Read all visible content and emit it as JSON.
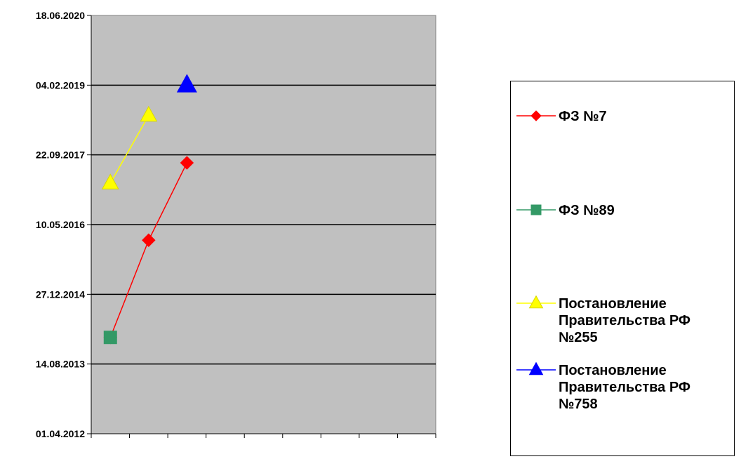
{
  "chart_data": {
    "type": "line",
    "title": "",
    "xlabel": "",
    "ylabel": "",
    "y_axis": {
      "type": "date",
      "tick_labels": [
        "01.04.2012",
        "14.08.2013",
        "27.12.2014",
        "10.05.2016",
        "22.09.2017",
        "04.02.2019",
        "18.06.2020"
      ],
      "ylim": [
        "01.04.2012",
        "18.06.2020"
      ]
    },
    "x_axis": {
      "categories": [
        "",
        "",
        "",
        "",
        "",
        "",
        "",
        "",
        ""
      ],
      "tick_labels_shown": false
    },
    "grid": {
      "horizontal": true,
      "vertical": false
    },
    "plot_background": "#c0c0c0",
    "legend_position": "right",
    "series": [
      {
        "name": "ФЗ №7",
        "color": "#ff0000",
        "marker": "diamond",
        "points": [
          {
            "x": 1,
            "y": "21.02.2014"
          },
          {
            "x": 2,
            "y": "19.01.2016"
          },
          {
            "x": 3,
            "y": "27.07.2017"
          }
        ]
      },
      {
        "name": "ФЗ №89",
        "color": "#339966",
        "marker": "square",
        "points": [
          {
            "x": 1,
            "y": "21.02.2014"
          }
        ]
      },
      {
        "name": "Постановление\nПравительства РФ\n№255",
        "color": "#ffff00",
        "marker": "triangle",
        "points": [
          {
            "x": 1,
            "y": "03.03.2017"
          },
          {
            "x": 2,
            "y": "02.07.2018"
          }
        ]
      },
      {
        "name": "Постановление\nПравительства РФ\n№758",
        "color": "#0000ff",
        "marker": "triangle",
        "points": [
          {
            "x": 3,
            "y": "04.02.2019"
          }
        ]
      }
    ]
  }
}
